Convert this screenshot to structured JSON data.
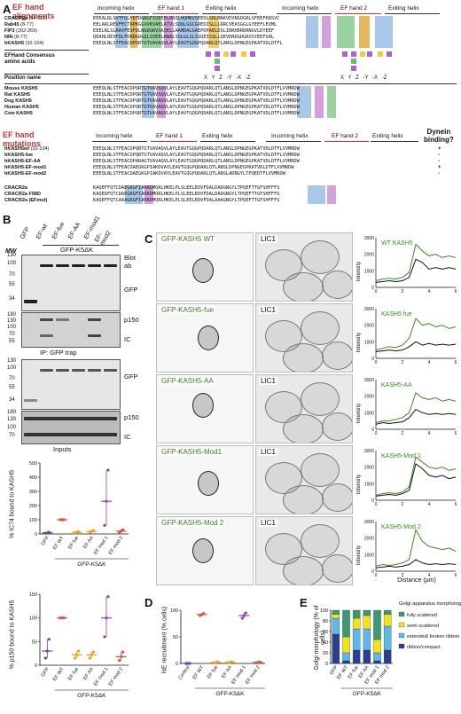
{
  "panelA": {
    "label": "A",
    "section1_title": [
      "EF hand",
      "alignments"
    ],
    "section2_title": [
      "EF hand",
      "mutations"
    ],
    "headers_top": [
      "Incoming helix",
      "EF hand 1",
      "Exiting helix",
      "Incoming helix",
      "EF hand 2",
      "Exiting helix"
    ],
    "rows_top": [
      {
        "name": "CRACR2a",
        "range": "(54-119)",
        "seq": "EEEALRLSVTFQLYDTDGNGFIQEEELRNILHQMRVSEEDLSRLMAKVDVNGDGRLSFEEFKRSVC"
      },
      {
        "name": "Rab45",
        "range": "(8-77)",
        "seq": "EELARLREVFECTAPKGGVVKVAELATVLSQQLGSCGREDISLLLRRCVEASGGLGYEEFLEVML"
      },
      {
        "name": "FIP3",
        "range": "(202-269)",
        "seq": "EEELRLSLRAVFESFDLNGDGRVSKQELLAAMRALGAEPDPAELDSLIRRHDRDRNGVLDYEEF"
      },
      {
        "name": "NIN",
        "range": "(8-77)",
        "seq": "QEAHLREVFDLFDRDGDGQLSVEELRNALSSLGLSLSSQEISQLLQEVDRDGDGRVSYEEFSRL"
      },
      {
        "name": "hKASH5",
        "range": "(32-104)",
        "seq": "EEEQLNLSTFEACDPQRTGTVAVAQVLAYLEAVTGQGPQDARLQTLANSLDPNGEGPKATVDLDTFL"
      }
    ],
    "consensus_label": [
      "EFHand Consensus",
      "amino acids"
    ],
    "consensus_cols": [
      "X",
      "Y",
      "Z",
      "-Y",
      "-X",
      "-Z",
      "X",
      "Y",
      "Z",
      "-Y",
      "-X",
      "-Z"
    ],
    "position_name_label": "Position name",
    "rows_species": [
      {
        "name": "Mouse KASH5",
        "seq": "EEEQLNLSTFEACDPQRTGTVAVSQVLAYLEAVTGQGPQDARLQTLANSLDPNGEGPKATVDLDTFLVVMRDW"
      },
      {
        "name": "Rat KASH5",
        "seq": "EEEQLNLSTFEACDPQRTGTVAVSQVLAYLEAVTGQGPQDARLQTLANSLDPNGEGPKATVDLDTFLVVMRDW"
      },
      {
        "name": "Dog KASH5",
        "seq": "EEEQLNLSTFEACDPQRTGTVAVAQVLAYLEAVTGQGPQDARLQTLANSLDPNGEGPKATVDLDTFLVVMRDW"
      },
      {
        "name": "Human KASH5",
        "seq": "EEEQLNLSTFEACDPQRTGTVAVAQVLAYLEAVTGQGPQDARLQTLANSLDPNGEGPKATVDLDTFLVVMRDW"
      },
      {
        "name": "Cow KASH5",
        "seq": "EEEQLNLSTFEACDPQRTGTVAVAQVLAYLEAVTGQGPQDARLQTLANSLDPNGEGPKATVDLDTFLVVMRDW"
      }
    ],
    "headers_mut": [
      "Incoming helix",
      "EF hand 1",
      "Exiting helix",
      "Incoming helix",
      "EF hand 2",
      "Exiting helix"
    ],
    "dynein_label": [
      "Dynein",
      "binding?"
    ],
    "rows_mut": [
      {
        "name": "hKASH5wt",
        "range": "(32-104)",
        "seq": "EEEQLNLSTFEACDPQRTGTVAVAQVLAYLEAVTGQGPQDARLQTLANSLDPNGEGPKATVDLDTFLVVMRDW",
        "binding": "+"
      },
      {
        "name": "hKASH5-fue",
        "range": "",
        "seq": "EEEQLNLSTFEACDPQRTGTVAVAQVLAYLEAVTGQGPQDARLQTLANSLDPNGEGPKATVDLDTFLVVMRDW",
        "binding": "-"
      },
      {
        "name": "hKASH5-EF-AA",
        "range": "",
        "seq": "EEEQLNLSTFEACDPARAGTVAVAQVLAYLEAVTGQGPQDARLQTLANSLDPNGEGPKATVDLDTFLVVMRDW",
        "binding": "-"
      },
      {
        "name": "hKASH5-EF-mod1",
        "range": "",
        "seq": "EEEQLNLSTFEACDAEGKGPIAKDVAYLEAVTGQGPQDARLQTLANSLDPNGEGPKATVDLDTFLVVMRDW",
        "binding": "+"
      },
      {
        "name": "hKASH5-EF-mod2",
        "range": "",
        "seq": "EEEQLNLSTFEACDAEGKGPIAKDVAYLEAVTGQGPQDARLQTLANSLADNGYLTPQEDTFLVVMRDW",
        "binding": "-"
      }
    ],
    "rows_cracr": [
      {
        "name": "CRACR2a",
        "seq": "KAQEFFQTCDAEGKGFIARKDMQRLHKELPLSLEELEDVFDALDADGNGYLTPQEFTTGFSHFFFS"
      },
      {
        "name": "CRACR2a F58D",
        "seq": "KAQEDFQTCDAEGKGFIARKDMQRLHKELPLSLEELEDVFDALDADGNGYLTPQEFTTGFSHFFFS"
      },
      {
        "name": "CRACR2a (EFmut)",
        "seq": "KAQEFFQTCAAAGKGFIARKDMQRLHKELPLSLEELEDVFDALAAAGNGYLTPQEFTTGFSHFFFS"
      }
    ]
  },
  "panelB": {
    "label": "B",
    "lane_labels": [
      "GFP",
      "EF-wt",
      "EF-fue",
      "EF-AA",
      "EF-mod1",
      "EF-mod2"
    ],
    "group_label": "GFP-K5ΔK",
    "mw_label": "MW",
    "mw_top": [
      "130",
      "100",
      "70",
      "55",
      "34"
    ],
    "mw_mid": [
      "180",
      "130",
      "100",
      "70",
      "55"
    ],
    "mw_inputs_top": [
      "130",
      "100",
      "70",
      "55",
      "34"
    ],
    "mw_inputs_mid": [
      "180",
      "130",
      "100",
      "70"
    ],
    "blot_ab_label": [
      "Blot",
      "ab"
    ],
    "gfp_label": "GFP",
    "p150_label": "p150",
    "ic_label": "IC",
    "ip_label": "IP: GFP trap",
    "gfp_label2": "GFP",
    "p150_label2": "p150",
    "ic_label2": "IC",
    "inputs_label": "Inputs",
    "chart1_ylabel": "% IC74 bound to KASH5",
    "chart2_ylabel": "% p150 bound to KASH5",
    "chart_xlabel": "GFP-K5ΔK"
  },
  "panelC": {
    "label": "C",
    "rows": [
      {
        "name": "GFP-KASH5 WT",
        "lic": "LIC1",
        "legend": "WT KASH5"
      },
      {
        "name": "GFP-KASH5-fue",
        "lic": "LIC1",
        "legend": "KASH5 fue"
      },
      {
        "name": "GFP-KASH5-AA",
        "lic": "LIC1",
        "legend": "KASH5-AA"
      },
      {
        "name": "GFP-KASH5-Mod1",
        "lic": "LIC1",
        "legend": "KASH5-Mod 1"
      },
      {
        "name": "GFP-KASH5-Mod 2",
        "lic": "LIC1",
        "legend": "KASH5-Mod 2"
      }
    ],
    "ylabel": "Intensity",
    "xlabel": "Distance (µm)",
    "yticks": [
      "3000",
      "2000",
      "1000",
      "0"
    ],
    "xticks": [
      "0",
      "2",
      "4",
      "6"
    ],
    "green_color": "#3a8a1e",
    "black_color": "#111111"
  },
  "panelD": {
    "label": "D",
    "ylabel": "NE recruitment (% cells)",
    "xlabel": "GFP-K5ΔK"
  },
  "panelE": {
    "label": "E",
    "ylabel": "Golgi morphology (% of cells)",
    "xlabel": "GFP-K5ΔK",
    "legend_title": "Golgi apparatus morphology",
    "legend": [
      {
        "name": "fully scattered",
        "color": "#3d9970"
      },
      {
        "name": "semi-scattered",
        "color": "#f1e21a"
      },
      {
        "name": "extended/ broken ribbon",
        "color": "#5db8e8"
      },
      {
        "name": "ribbon/compact",
        "color": "#2c3e90"
      }
    ]
  },
  "chart_data": [
    {
      "type": "scatter",
      "panel": "B-top",
      "ylabel": "% IC74 bound to KASH5",
      "xlabel": "GFP-K5ΔK",
      "categories": [
        "GFP",
        "EF WT",
        "EF fue",
        "EF AA",
        "EF mod 1",
        "EF mod 2"
      ],
      "ylim": [
        0,
        500
      ],
      "yticks": [
        0,
        100,
        200,
        300,
        400,
        500
      ],
      "means": [
        8,
        100,
        12,
        18,
        230,
        20
      ],
      "points": [
        [
          5,
          8,
          12
        ],
        [
          100,
          100,
          100
        ],
        [
          8,
          12,
          15
        ],
        [
          12,
          18,
          24
        ],
        [
          60,
          230,
          450
        ],
        [
          10,
          20,
          30
        ]
      ],
      "colors": [
        "#7b3fa0",
        "#e74c3c",
        "#f39c12",
        "#f39c12",
        "#8e44ad",
        "#e74c3c"
      ]
    },
    {
      "type": "scatter",
      "panel": "B-bottom",
      "ylabel": "% p150 bound to KASH5",
      "xlabel": "GFP-K5ΔK",
      "categories": [
        "GFP",
        "EF WT",
        "EF fue",
        "EF AA",
        "EF mod 1",
        "EF mod 2"
      ],
      "ylim": [
        0,
        150
      ],
      "yticks": [
        0,
        50,
        100,
        150
      ],
      "means": [
        30,
        100,
        22,
        22,
        100,
        18
      ],
      "points": [
        [
          15,
          30,
          55
        ],
        [
          100,
          100,
          100
        ],
        [
          15,
          22,
          30
        ],
        [
          15,
          22,
          28
        ],
        [
          60,
          100,
          145
        ],
        [
          10,
          18,
          28
        ]
      ],
      "colors": [
        "#7b3fa0",
        "#e74c3c",
        "#f39c12",
        "#f39c12",
        "#8e44ad",
        "#e74c3c"
      ]
    },
    {
      "type": "scatter",
      "panel": "D",
      "ylabel": "NE recruitment (% cells)",
      "xlabel": "GFP-K5ΔK",
      "categories": [
        "Control",
        "EF WT",
        "EF fue",
        "EF AA",
        "EF mod 1",
        "EF mod 2"
      ],
      "ylim": [
        0,
        100
      ],
      "yticks": [
        0,
        50,
        100
      ],
      "means": [
        0,
        92,
        2,
        2,
        90,
        2
      ],
      "points": [
        [
          0,
          0,
          0
        ],
        [
          90,
          92,
          94
        ],
        [
          1,
          2,
          3
        ],
        [
          1,
          2,
          3
        ],
        [
          85,
          90,
          95
        ],
        [
          1,
          2,
          3
        ]
      ],
      "colors": [
        "#7b3fa0",
        "#e74c3c",
        "#f39c12",
        "#f39c12",
        "#8e44ad",
        "#e74c3c"
      ]
    },
    {
      "type": "bar",
      "panel": "E",
      "stacked": true,
      "ylabel": "Golgi morphology (% of cells)",
      "xlabel": "GFP-K5ΔK",
      "categories": [
        "GFP",
        "EF WT",
        "EF fue",
        "EF AA",
        "EF mod 1",
        "EF mod 2"
      ],
      "ylim": [
        0,
        100
      ],
      "yticks": [
        0,
        20,
        40,
        60,
        80,
        100
      ],
      "series": [
        {
          "name": "ribbon/compact",
          "values": [
            55,
            5,
            25,
            25,
            5,
            25
          ]
        },
        {
          "name": "extended/ broken ribbon",
          "values": [
            30,
            15,
            40,
            40,
            15,
            45
          ]
        },
        {
          "name": "semi-scattered",
          "values": [
            7,
            30,
            20,
            25,
            25,
            22
          ]
        },
        {
          "name": "fully scattered",
          "values": [
            8,
            50,
            15,
            10,
            55,
            8
          ]
        }
      ]
    },
    {
      "type": "line",
      "panel": "C-profiles",
      "xlabel": "Distance (µm)",
      "ylabel": "Intensity",
      "xlim": [
        0,
        6
      ],
      "ylim": [
        0,
        3000
      ],
      "x": [
        0,
        0.5,
        1,
        1.5,
        2,
        2.5,
        3,
        3.5,
        4,
        4.5,
        5,
        5.5,
        6
      ],
      "profiles": [
        {
          "green": [
            400,
            500,
            550,
            500,
            600,
            900,
            2600,
            2200,
            1900,
            2000,
            1800,
            1900,
            1800
          ],
          "black": [
            300,
            350,
            400,
            350,
            400,
            600,
            1700,
            1500,
            1100,
            1200,
            1100,
            1200,
            1100
          ]
        },
        {
          "green": [
            500,
            600,
            700,
            650,
            800,
            1200,
            2400,
            2000,
            2100,
            1900,
            2000,
            1800,
            1900
          ],
          "black": [
            400,
            450,
            500,
            450,
            500,
            700,
            1000,
            800,
            900,
            800,
            850,
            800,
            850
          ]
        },
        {
          "green": [
            400,
            500,
            500,
            600,
            700,
            1000,
            2200,
            1900,
            1800,
            1900,
            1700,
            1800,
            1700
          ],
          "black": [
            300,
            400,
            350,
            400,
            450,
            700,
            1200,
            1000,
            900,
            950,
            900,
            950,
            900
          ]
        },
        {
          "green": [
            300,
            400,
            450,
            400,
            500,
            800,
            2600,
            2300,
            2000,
            1900,
            2000,
            1800,
            1900
          ],
          "black": [
            250,
            300,
            350,
            300,
            400,
            600,
            2200,
            1900,
            1500,
            1400,
            1500,
            1300,
            1400
          ]
        },
        {
          "green": [
            300,
            400,
            350,
            400,
            500,
            700,
            2500,
            1800,
            1500,
            1400,
            1300,
            1400,
            1200
          ],
          "black": [
            200,
            250,
            300,
            250,
            300,
            400,
            700,
            500,
            400,
            450,
            400,
            450,
            400
          ]
        }
      ]
    }
  ]
}
